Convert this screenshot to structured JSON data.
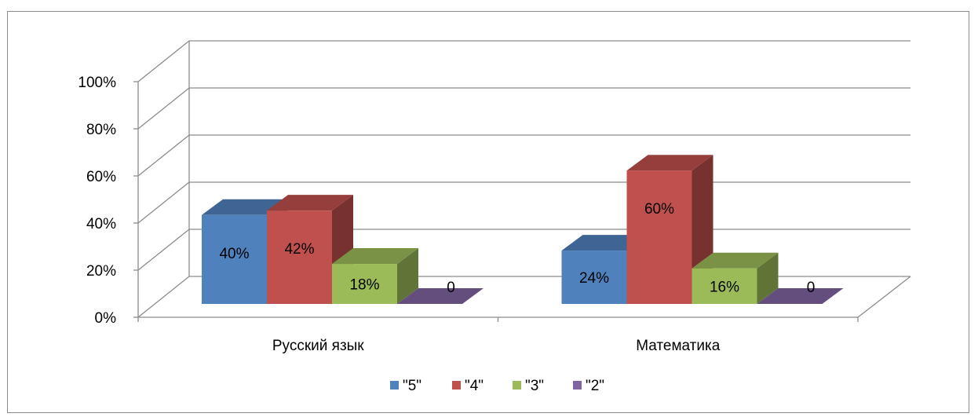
{
  "chart_data": {
    "type": "bar",
    "categories": [
      "Русский язык",
      "Математика"
    ],
    "series": [
      {
        "name": "\"5\"",
        "values": [
          40,
          24
        ],
        "labels": [
          "40%",
          "24%"
        ],
        "color": "#4f81bd"
      },
      {
        "name": "\"4\"",
        "values": [
          42,
          60
        ],
        "labels": [
          "42%",
          "60%"
        ],
        "color": "#c0504d"
      },
      {
        "name": "\"3\"",
        "values": [
          18,
          16
        ],
        "labels": [
          "18%",
          "16%"
        ],
        "color": "#9bbb59"
      },
      {
        "name": "\"2\"",
        "values": [
          0,
          0
        ],
        "labels": [
          "0",
          "0"
        ],
        "color": "#8064a2"
      }
    ],
    "yticks": [
      "0%",
      "20%",
      "40%",
      "60%",
      "80%",
      "100%"
    ],
    "ylim": [
      0,
      100
    ],
    "grid": true,
    "legend": "bottom",
    "three_d": true
  }
}
